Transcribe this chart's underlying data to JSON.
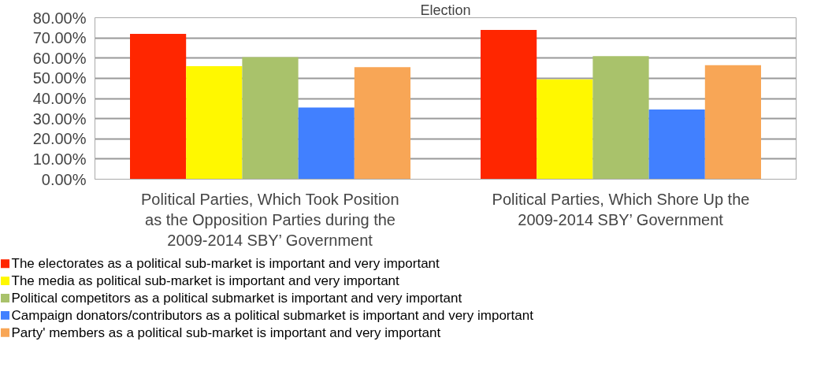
{
  "chart_data": {
    "type": "bar",
    "title": "Election",
    "categories": [
      "Political Parties, Which Took Position as the Opposition Parties during the 2009-2014 SBY’ Government",
      "Political Parties, Which Shore Up the 2009-2014 SBY’ Government"
    ],
    "series": [
      {
        "name": "The electorates as a political sub-market is important and very important",
        "color": "#ff2600",
        "values": [
          72,
          74
        ]
      },
      {
        "name": "The media as political sub-market is important and very important",
        "color": "#fff800",
        "values": [
          56,
          49.5
        ]
      },
      {
        "name": "Political competitors as a political submarket is important and very important",
        "color": "#a9c26b",
        "values": [
          60.5,
          61
        ]
      },
      {
        "name": "Campaign donators/contributors as a political submarket is important and very important",
        "color": "#4180ff",
        "values": [
          35.5,
          34.5
        ]
      },
      {
        "name": "Party' members as a political sub-market is important and very important",
        "color": "#f8a656",
        "values": [
          55.5,
          56.5
        ]
      }
    ],
    "ylim": [
      0,
      80
    ],
    "yticks": [
      {
        "value": 0,
        "label": "0.00%"
      },
      {
        "value": 10,
        "label": "10.00%"
      },
      {
        "value": 20,
        "label": "20.00%"
      },
      {
        "value": 30,
        "label": "30.00%"
      },
      {
        "value": 40,
        "label": "40.00%"
      },
      {
        "value": 50,
        "label": "50.00%"
      },
      {
        "value": 60,
        "label": "60.00%"
      },
      {
        "value": 70,
        "label": "70.00%"
      },
      {
        "value": 80,
        "label": "80.00%"
      }
    ],
    "grid": "y",
    "legend": "bottom"
  }
}
